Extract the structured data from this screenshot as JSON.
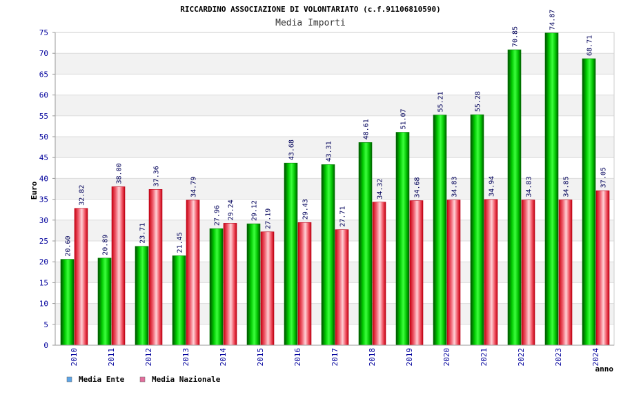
{
  "chart_data": {
    "type": "bar",
    "title": "RICCARDINO ASSOCIAZIONE DI VOLONTARIATO (c.f.91106810590)",
    "subtitle": "Media Importi",
    "xlabel": "anno",
    "ylabel": "Euro",
    "ylim": [
      0,
      75
    ],
    "yticks": [
      "0",
      "5",
      "10",
      "15",
      "20",
      "25",
      "30",
      "35",
      "40",
      "45",
      "50",
      "55",
      "60",
      "65",
      "70",
      "75"
    ],
    "grid": true,
    "legend_position": "bottom-left",
    "categories": [
      "2010",
      "2011",
      "2012",
      "2013",
      "2014",
      "2015",
      "2016",
      "2017",
      "2018",
      "2019",
      "2020",
      "2021",
      "2022",
      "2023",
      "2024"
    ],
    "series": [
      {
        "name": "Media Ente",
        "color": "#00b400",
        "legend_color": "#5da5e8",
        "values": [
          20.6,
          20.89,
          23.71,
          21.45,
          27.96,
          29.12,
          43.68,
          43.31,
          48.61,
          51.07,
          55.21,
          55.28,
          70.85,
          74.87,
          68.71
        ],
        "labels": [
          "20.60",
          "20.89",
          "23.71",
          "21.45",
          "27.96",
          "29.12",
          "43.68",
          "43.31",
          "48.61",
          "51.07",
          "55.21",
          "55.28",
          "70.85",
          "74.87",
          "68.71"
        ]
      },
      {
        "name": "Media Nazionale",
        "color": "#ea1a2e",
        "legend_color": "#e36f9d",
        "values": [
          32.82,
          38.0,
          37.36,
          34.79,
          29.24,
          27.19,
          29.43,
          27.71,
          34.32,
          34.68,
          34.83,
          34.94,
          34.83,
          34.85,
          37.05
        ],
        "labels": [
          "32.82",
          "38.00",
          "37.36",
          "34.79",
          "29.24",
          "27.19",
          "29.43",
          "27.71",
          "34.32",
          "34.68",
          "34.83",
          "34.94",
          "34.83",
          "34.85",
          "37.05"
        ]
      }
    ]
  },
  "colors": {
    "axis_text": "#00009c",
    "label_text": "#00005a",
    "band_fill": "#f2f2f2",
    "grid_line": "#dcdcdc"
  }
}
